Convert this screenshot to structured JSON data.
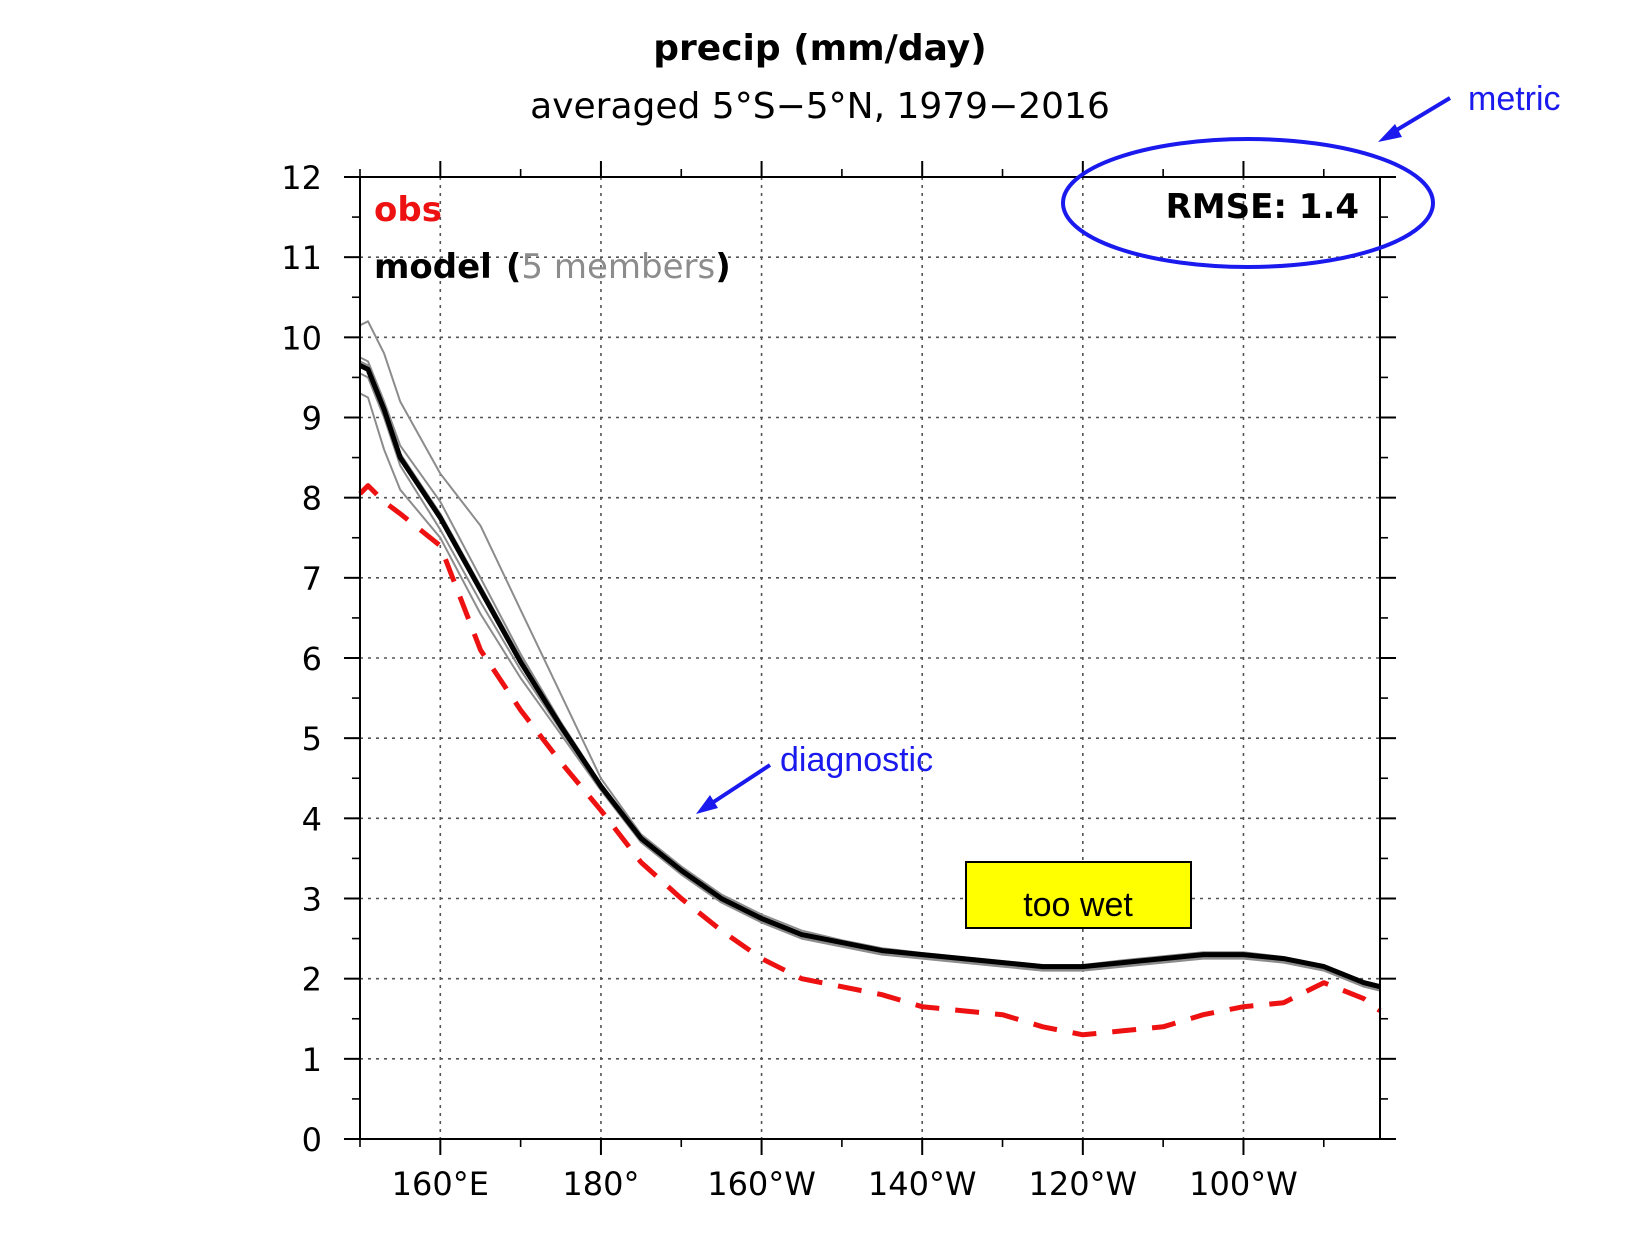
{
  "chart_data": {
    "type": "line",
    "title": "precip (mm/day)",
    "subtitle": "averaged 5°S−5°N, 1979−2016",
    "xlabel": "",
    "ylabel": "",
    "xlim": [
      150,
      277
    ],
    "ylim": [
      0,
      12
    ],
    "x_ticks": [
      {
        "value": 160,
        "label": "160°E"
      },
      {
        "value": 180,
        "label": "180°"
      },
      {
        "value": 200,
        "label": "160°W"
      },
      {
        "value": 220,
        "label": "140°W"
      },
      {
        "value": 240,
        "label": "120°W"
      },
      {
        "value": 260,
        "label": "100°W"
      }
    ],
    "y_ticks": [
      {
        "value": 0,
        "label": "0"
      },
      {
        "value": 1,
        "label": "1"
      },
      {
        "value": 2,
        "label": "2"
      },
      {
        "value": 3,
        "label": "3"
      },
      {
        "value": 4,
        "label": "4"
      },
      {
        "value": 5,
        "label": "5"
      },
      {
        "value": 6,
        "label": "6"
      },
      {
        "value": 7,
        "label": "7"
      },
      {
        "value": 8,
        "label": "8"
      },
      {
        "value": 9,
        "label": "9"
      },
      {
        "value": 10,
        "label": "10"
      },
      {
        "value": 11,
        "label": "11"
      },
      {
        "value": 12,
        "label": "12"
      }
    ],
    "grid": true,
    "legend": {
      "placement": "top-left",
      "obs_label": "obs",
      "model_label": "model",
      "paren_open": "(",
      "members_label": "5 members",
      "paren_close": ")"
    },
    "metric_text": "RMSE: 1.4",
    "x": [
      150,
      151,
      153,
      155,
      160,
      165,
      170,
      175,
      180,
      185,
      190,
      195,
      200,
      205,
      210,
      215,
      220,
      225,
      230,
      235,
      240,
      245,
      250,
      255,
      260,
      265,
      270,
      275,
      277
    ],
    "series": [
      {
        "name": "obs",
        "color": "#ee1111",
        "dash": true,
        "values": [
          8.05,
          8.15,
          7.95,
          7.8,
          7.4,
          6.1,
          5.35,
          4.7,
          4.1,
          3.45,
          3.0,
          2.6,
          2.25,
          2.0,
          1.9,
          1.8,
          1.65,
          1.6,
          1.55,
          1.4,
          1.3,
          1.35,
          1.4,
          1.55,
          1.65,
          1.7,
          1.95,
          1.75,
          1.6
        ]
      },
      {
        "name": "model",
        "color": "#000000",
        "values": [
          9.65,
          9.6,
          9.1,
          8.5,
          7.75,
          6.85,
          5.95,
          5.15,
          4.4,
          3.75,
          3.35,
          3.0,
          2.75,
          2.55,
          2.45,
          2.35,
          2.3,
          2.25,
          2.2,
          2.15,
          2.15,
          2.2,
          2.25,
          2.3,
          2.3,
          2.25,
          2.15,
          1.95,
          1.9
        ]
      },
      {
        "name": "member-1",
        "color": "#8c8c8c",
        "values": [
          10.15,
          10.2,
          9.8,
          9.2,
          8.3,
          7.65,
          6.6,
          5.55,
          4.5,
          3.8,
          3.4,
          3.05,
          2.8,
          2.6,
          2.48,
          2.38,
          2.32,
          2.27,
          2.22,
          2.17,
          2.17,
          2.23,
          2.28,
          2.33,
          2.33,
          2.27,
          2.17,
          1.97,
          1.92
        ]
      },
      {
        "name": "member-2",
        "color": "#8c8c8c",
        "values": [
          9.75,
          9.7,
          9.2,
          8.65,
          7.95,
          7.0,
          6.05,
          5.2,
          4.43,
          3.78,
          3.37,
          3.02,
          2.77,
          2.57,
          2.47,
          2.37,
          2.31,
          2.26,
          2.21,
          2.16,
          2.16,
          2.21,
          2.26,
          2.31,
          2.31,
          2.26,
          2.16,
          1.96,
          1.91
        ]
      },
      {
        "name": "member-3",
        "color": "#8c8c8c",
        "values": [
          9.55,
          9.5,
          9.0,
          8.4,
          7.6,
          6.7,
          5.85,
          5.1,
          4.38,
          3.72,
          3.32,
          2.97,
          2.72,
          2.52,
          2.42,
          2.32,
          2.27,
          2.22,
          2.17,
          2.12,
          2.12,
          2.17,
          2.22,
          2.27,
          2.27,
          2.22,
          2.12,
          1.92,
          1.87
        ]
      },
      {
        "name": "member-4",
        "color": "#8c8c8c",
        "values": [
          9.3,
          9.25,
          8.6,
          8.1,
          7.5,
          6.55,
          5.75,
          5.05,
          4.35,
          3.7,
          3.3,
          2.95,
          2.7,
          2.5,
          2.4,
          2.3,
          2.25,
          2.2,
          2.15,
          2.1,
          2.1,
          2.15,
          2.2,
          2.25,
          2.25,
          2.2,
          2.1,
          1.9,
          1.85
        ]
      },
      {
        "name": "member-5",
        "color": "#8c8c8c",
        "values": [
          9.7,
          9.65,
          9.15,
          8.55,
          7.8,
          6.9,
          6.0,
          5.18,
          4.42,
          3.76,
          3.36,
          3.01,
          2.76,
          2.56,
          2.46,
          2.36,
          2.3,
          2.25,
          2.2,
          2.15,
          2.15,
          2.2,
          2.25,
          2.3,
          2.3,
          2.25,
          2.15,
          1.95,
          1.9
        ]
      }
    ],
    "annotations": {
      "metric": "metric",
      "diagnostic": "diagnostic",
      "too_wet": "too wet"
    },
    "colors": {
      "obs": "#ee1111",
      "model": "#000000",
      "members": "#8c8c8c",
      "annotation": "#1a1aee",
      "too_wet_fill": "#ffff00"
    }
  }
}
